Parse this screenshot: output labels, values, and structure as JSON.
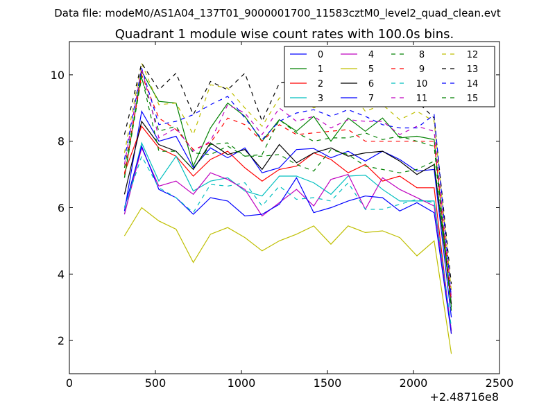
{
  "header": {
    "data_file": "Data file: modeM0/AS1A04_137T01_9000001700_11583cztM0_level2_quad_clean.evt"
  },
  "chart_data": {
    "type": "line",
    "title": "Quadrant 1 module wise count rates with 100.0s bins.",
    "xlabel": "",
    "ylabel": "",
    "x_offset_label": "+2.48716e8",
    "xlim": [
      0,
      2500
    ],
    "ylim": [
      1,
      11
    ],
    "x_ticks": [
      0,
      500,
      1000,
      1500,
      2000,
      2500
    ],
    "y_ticks": [
      2,
      4,
      6,
      8,
      10
    ],
    "grid": false,
    "legend_position": "top-right",
    "legend_columns": 4,
    "x": [
      320,
      420,
      520,
      620,
      720,
      820,
      920,
      1020,
      1120,
      1220,
      1320,
      1420,
      1520,
      1620,
      1720,
      1820,
      1920,
      2020,
      2120,
      2220
    ],
    "series": [
      {
        "name": "0",
        "color": "#0000ff",
        "dash": "solid",
        "values": [
          5.9,
          8.9,
          8.0,
          8.15,
          7.2,
          7.8,
          7.5,
          7.8,
          7.05,
          7.2,
          7.75,
          7.78,
          7.5,
          7.7,
          7.4,
          7.7,
          7.45,
          7.1,
          7.15,
          2.7
        ]
      },
      {
        "name": "1",
        "color": "#008000",
        "dash": "solid",
        "values": [
          6.9,
          10.1,
          9.2,
          9.15,
          7.25,
          8.4,
          9.15,
          8.75,
          8.0,
          8.65,
          8.3,
          8.75,
          8.0,
          8.7,
          8.3,
          8.7,
          8.1,
          8.15,
          8.05,
          3.0
        ]
      },
      {
        "name": "2",
        "color": "#ff0000",
        "dash": "solid",
        "values": [
          7.05,
          8.45,
          7.8,
          7.55,
          6.95,
          7.45,
          7.7,
          7.2,
          6.8,
          7.15,
          7.25,
          7.65,
          7.45,
          7.05,
          7.3,
          6.8,
          6.95,
          6.6,
          6.6,
          2.2
        ]
      },
      {
        "name": "3",
        "color": "#00bfbf",
        "dash": "solid",
        "values": [
          5.8,
          7.95,
          6.8,
          7.55,
          6.5,
          6.8,
          6.9,
          6.5,
          6.35,
          6.95,
          6.95,
          6.75,
          6.4,
          6.95,
          6.98,
          6.55,
          6.2,
          6.2,
          6.2,
          2.3
        ]
      },
      {
        "name": "4",
        "color": "#bf00bf",
        "dash": "solid",
        "values": [
          5.8,
          7.8,
          6.65,
          6.8,
          6.4,
          7.05,
          6.85,
          6.55,
          5.75,
          6.15,
          6.55,
          6.05,
          6.85,
          7.0,
          5.95,
          6.9,
          6.55,
          6.3,
          6.05,
          2.3
        ]
      },
      {
        "name": "5",
        "color": "#bfbf00",
        "dash": "solid",
        "values": [
          5.15,
          6.0,
          5.6,
          5.35,
          4.35,
          5.2,
          5.4,
          5.1,
          4.7,
          5.0,
          5.2,
          5.45,
          4.9,
          5.45,
          5.25,
          5.3,
          5.1,
          4.55,
          5.0,
          1.6
        ]
      },
      {
        "name": "6",
        "color": "#000000",
        "dash": "solid",
        "values": [
          6.4,
          8.6,
          7.9,
          7.7,
          7.15,
          7.95,
          7.6,
          7.75,
          7.15,
          7.9,
          7.35,
          7.65,
          7.8,
          7.55,
          7.65,
          7.7,
          7.4,
          7.0,
          7.3,
          3.1
        ]
      },
      {
        "name": "7",
        "color": "#0000ff",
        "dash": "solid",
        "values": [
          6.0,
          7.85,
          6.55,
          6.3,
          5.8,
          6.3,
          6.2,
          5.75,
          5.8,
          6.1,
          6.9,
          5.85,
          6.0,
          6.2,
          6.35,
          6.3,
          5.9,
          6.15,
          5.85,
          2.2
        ]
      },
      {
        "name": "8",
        "color": "#008000",
        "dash": "dashed",
        "values": [
          7.2,
          9.9,
          8.3,
          8.45,
          7.65,
          7.6,
          7.85,
          7.55,
          7.55,
          7.6,
          7.3,
          7.1,
          7.75,
          7.6,
          7.25,
          7.15,
          7.05,
          7.15,
          7.4,
          3.1
        ]
      },
      {
        "name": "9",
        "color": "#ff0000",
        "dash": "dashed",
        "values": [
          7.0,
          10.0,
          8.7,
          8.35,
          7.75,
          7.95,
          8.7,
          8.5,
          8.0,
          8.5,
          8.2,
          8.25,
          8.3,
          8.35,
          8.0,
          8.0,
          8.0,
          8.0,
          8.0,
          3.2
        ]
      },
      {
        "name": "10",
        "color": "#00bfbf",
        "dash": "dashed",
        "values": [
          6.0,
          7.55,
          6.6,
          6.3,
          5.85,
          6.7,
          6.65,
          6.75,
          6.05,
          6.65,
          6.25,
          6.3,
          6.2,
          6.75,
          5.95,
          5.95,
          6.1,
          6.25,
          6.15,
          2.4
        ]
      },
      {
        "name": "11",
        "color": "#bf00bf",
        "dash": "dashed",
        "values": [
          7.3,
          10.2,
          8.1,
          8.4,
          7.7,
          8.0,
          9.1,
          8.85,
          8.2,
          9.0,
          8.6,
          8.75,
          8.4,
          8.65,
          8.6,
          8.6,
          8.2,
          8.45,
          8.3,
          3.3
        ]
      },
      {
        "name": "12",
        "color": "#bfbf00",
        "dash": "dashed",
        "values": [
          7.65,
          10.35,
          9.1,
          9.15,
          8.2,
          9.7,
          9.6,
          9.0,
          8.45,
          9.3,
          9.45,
          9.0,
          9.25,
          9.6,
          8.9,
          9.1,
          8.65,
          8.9,
          8.6,
          3.5
        ]
      },
      {
        "name": "13",
        "color": "#000000",
        "dash": "dashed",
        "values": [
          8.2,
          10.35,
          9.55,
          10.05,
          8.8,
          9.8,
          9.55,
          10.05,
          8.6,
          9.75,
          9.85,
          9.55,
          9.6,
          9.95,
          9.65,
          9.55,
          9.7,
          9.2,
          8.7,
          3.7
        ]
      },
      {
        "name": "14",
        "color": "#0000ff",
        "dash": "dashed",
        "values": [
          7.45,
          10.2,
          8.5,
          8.6,
          8.8,
          9.1,
          9.35,
          8.7,
          8.05,
          8.6,
          8.85,
          8.95,
          8.75,
          8.95,
          8.75,
          8.5,
          8.4,
          8.4,
          8.8,
          3.3
        ]
      },
      {
        "name": "15",
        "color": "#008000",
        "dash": "dashed",
        "values": [
          6.9,
          9.95,
          7.7,
          7.7,
          7.15,
          7.9,
          7.95,
          7.55,
          7.6,
          8.65,
          8.25,
          8.0,
          8.1,
          8.1,
          8.25,
          8.05,
          8.15,
          8.0,
          7.85,
          2.9
        ]
      }
    ]
  }
}
